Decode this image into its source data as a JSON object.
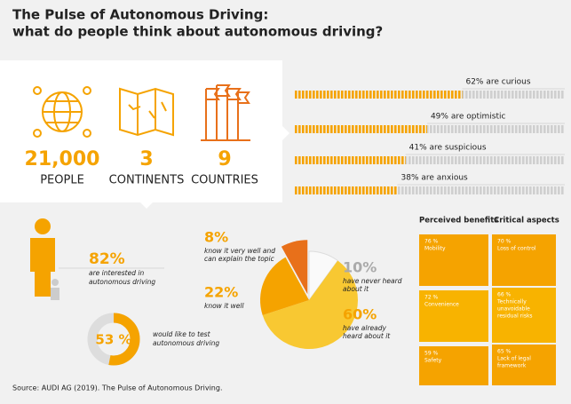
{
  "title": [
    "The Pulse of Autonomous Driving:",
    "what do people think about autonomous driving?"
  ],
  "stats": [
    {
      "value": "21,000",
      "label": "PEOPLE"
    },
    {
      "value": "3",
      "label": "CONTINENTS"
    },
    {
      "value": "9",
      "label": "COUNTRIES"
    }
  ],
  "attitudes": [
    {
      "value": 62,
      "label": "62% are curious"
    },
    {
      "value": 49,
      "label": "49% are optimistic"
    },
    {
      "value": 41,
      "label": "41% are suspicious"
    },
    {
      "value": 38,
      "label": "38% are anxious"
    }
  ],
  "interested": {
    "label": "82%",
    "text": [
      "are interested in",
      "autonomous driving"
    ]
  },
  "test": {
    "value": 53,
    "label": "53 %",
    "text": [
      "would like to test",
      "autonomous driving"
    ]
  },
  "knowledge": [
    {
      "value": 10,
      "label": "10%",
      "text": [
        "have never heard",
        "about it"
      ]
    },
    {
      "value": 60,
      "label": "60%",
      "text": [
        "have already",
        "heard about it"
      ]
    },
    {
      "value": 22,
      "label": "22%",
      "text": [
        "know it well"
      ]
    },
    {
      "value": 8,
      "label": "8%",
      "text": [
        "know it very well and",
        "can explain the topic"
      ]
    }
  ],
  "benefits": {
    "title": "Perceived benefits",
    "items": [
      [
        "76 %",
        "Mobility"
      ],
      [
        "72 %",
        "Convenience"
      ],
      [
        "59 %",
        "Safety"
      ]
    ]
  },
  "critical": {
    "title": "Critical aspects",
    "items": [
      [
        "70 %",
        "Loss of control"
      ],
      [
        "66 %",
        "Technically",
        "unavoidable",
        "residual risks"
      ],
      [
        "65 %",
        "Lack of legal",
        "framework"
      ]
    ]
  },
  "source": "Source: AUDI AG (2019). The Pulse of Autonomous Driving."
}
